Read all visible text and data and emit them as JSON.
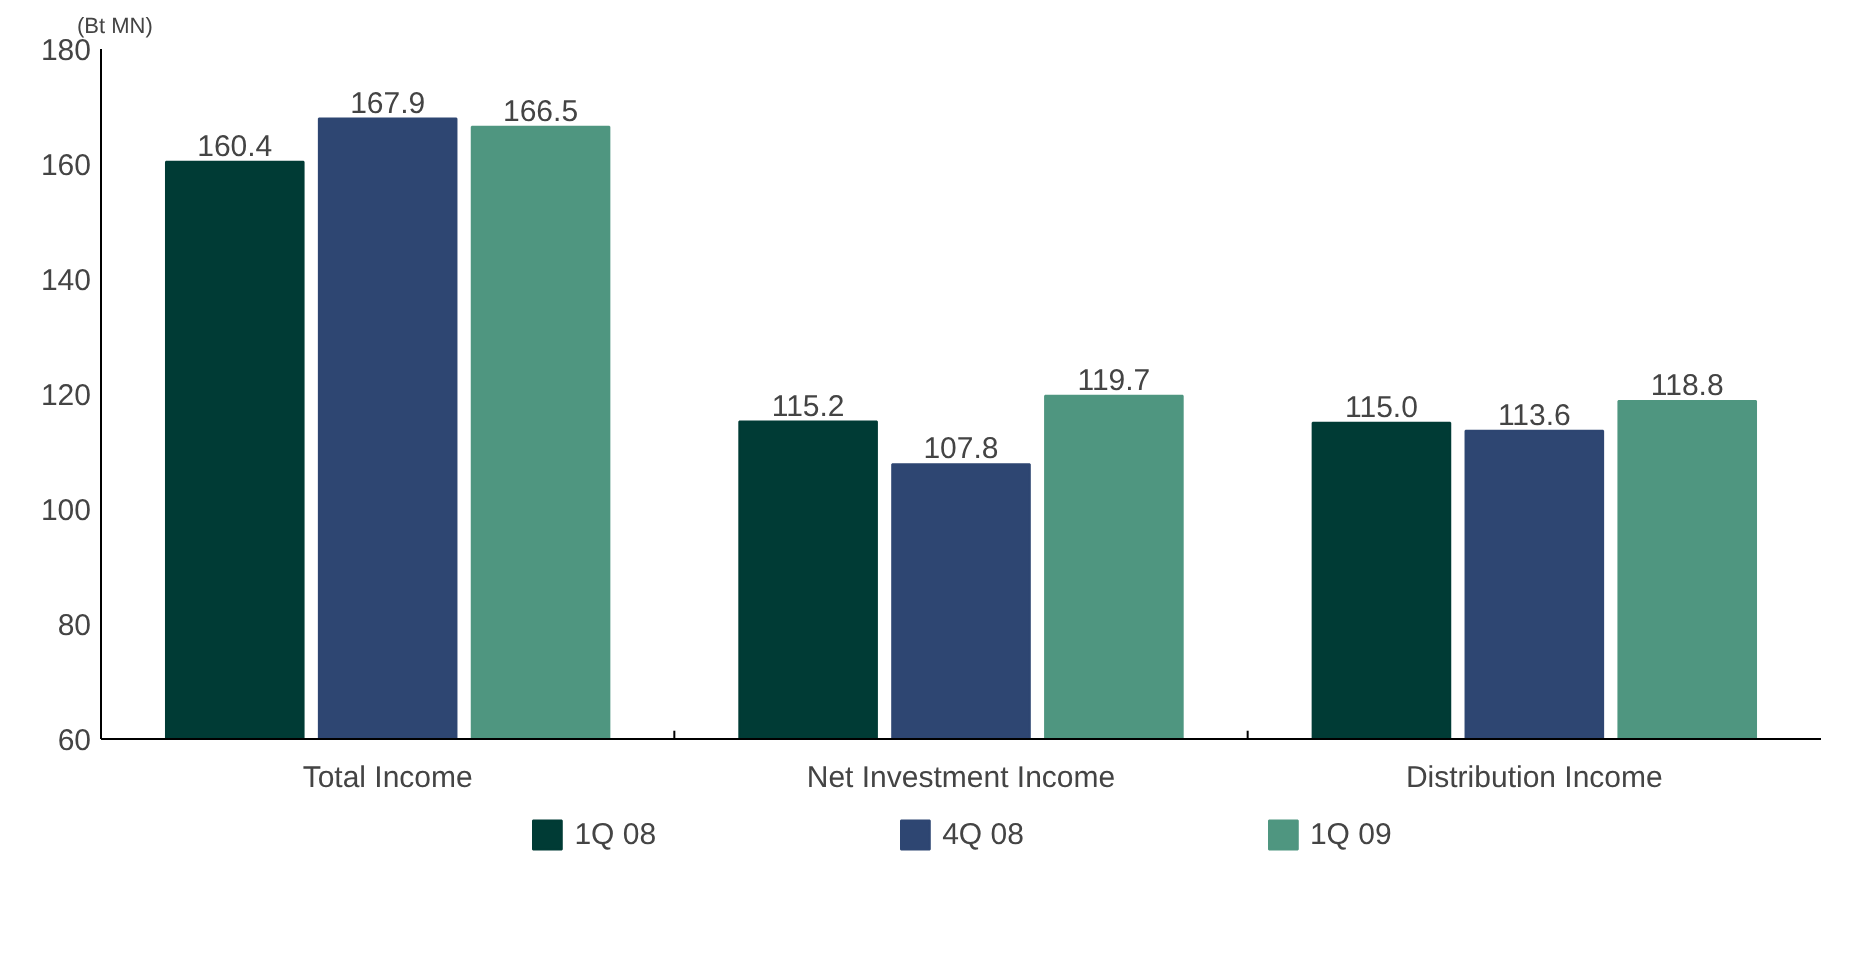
{
  "chart_data": {
    "type": "bar",
    "ylabel": "(Bt MN)",
    "categories": [
      "Total Income",
      "Net Investment Income",
      "Distribution Income"
    ],
    "series": [
      {
        "name": "1Q 08",
        "color": "#003b35",
        "values": [
          160.4,
          115.2,
          115.0
        ],
        "value_labels": [
          "160.4",
          "115.2",
          "115.0"
        ]
      },
      {
        "name": "4Q 08",
        "color": "#2e4672",
        "values": [
          167.9,
          107.8,
          113.6
        ],
        "value_labels": [
          "167.9",
          "107.8",
          "113.6"
        ]
      },
      {
        "name": "1Q 09",
        "color": "#4f9680",
        "values": [
          166.5,
          119.7,
          118.8
        ],
        "value_labels": [
          "166.5",
          "119.7",
          "118.8"
        ]
      }
    ],
    "ylim": [
      60,
      180
    ],
    "yticks": [
      60,
      80,
      100,
      120,
      140,
      160,
      180
    ],
    "legend": "bottom"
  }
}
